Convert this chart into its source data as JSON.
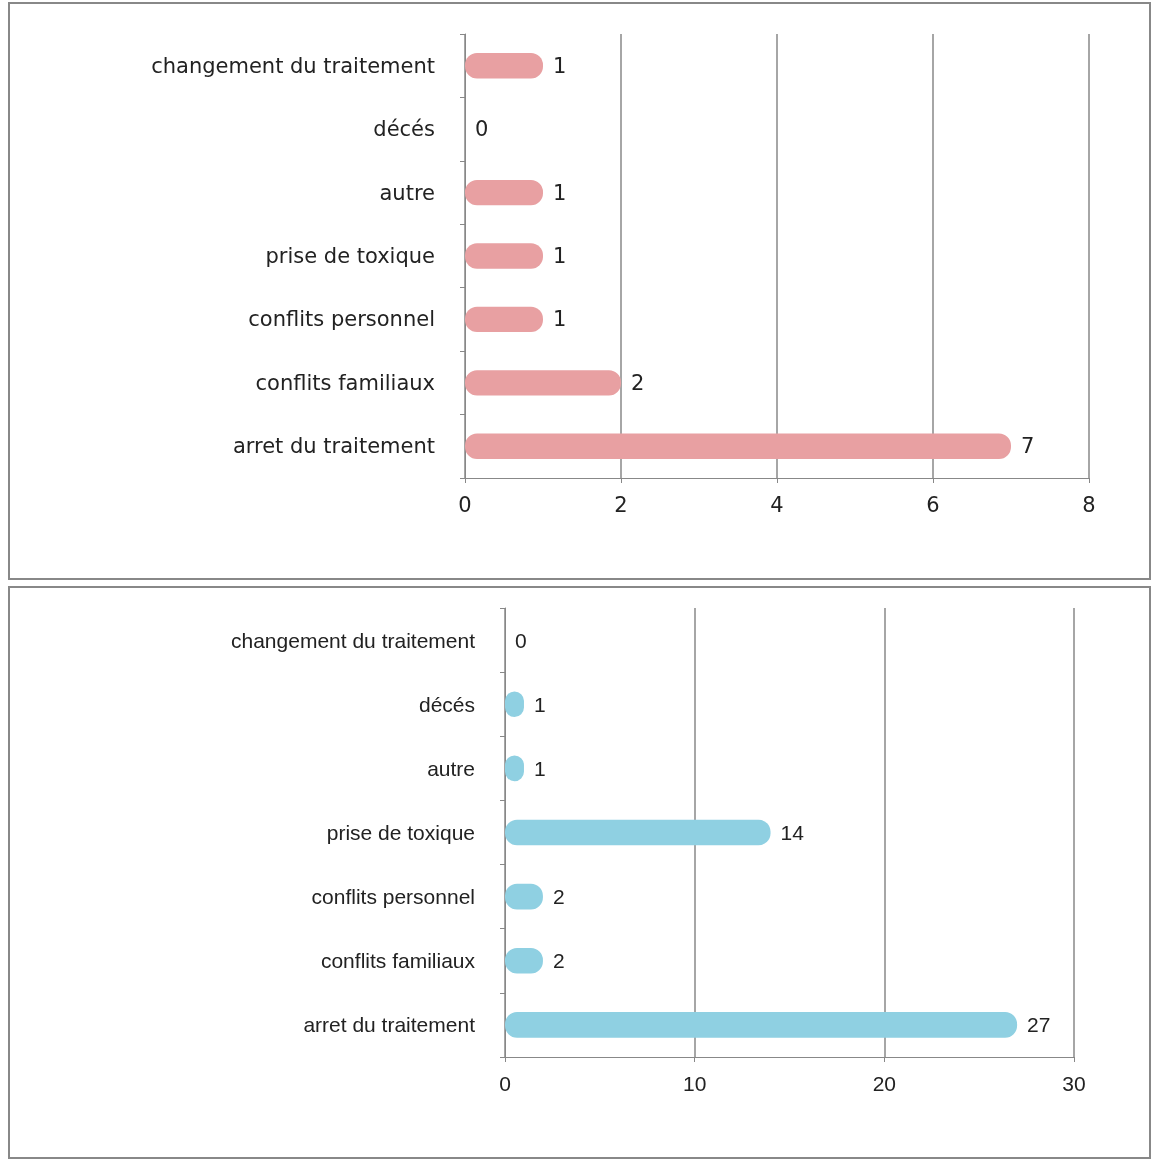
{
  "chart_data": [
    {
      "type": "bar",
      "orientation": "horizontal",
      "categories": [
        "changement du traitement",
        "décés",
        "autre",
        "prise de toxique",
        "conflits personnel",
        "conflits familiaux",
        "arret du traitement"
      ],
      "values": [
        1,
        0,
        1,
        1,
        1,
        2,
        7
      ],
      "color": "#e8a0a2",
      "xlim": [
        0,
        8
      ],
      "xticks": [
        0,
        2,
        4,
        6,
        8
      ],
      "grid": "x",
      "data_labels": true
    },
    {
      "type": "bar",
      "orientation": "horizontal",
      "categories": [
        "changement du traitement",
        "décés",
        "autre",
        "prise de toxique",
        "conflits personnel",
        "conflits familiaux",
        "arret du traitement"
      ],
      "values": [
        0,
        1,
        1,
        14,
        2,
        2,
        27
      ],
      "color": "#8fd0e2",
      "xlim": [
        0,
        30
      ],
      "xticks": [
        0,
        10,
        20,
        30
      ],
      "grid": "x",
      "data_labels": true
    }
  ]
}
